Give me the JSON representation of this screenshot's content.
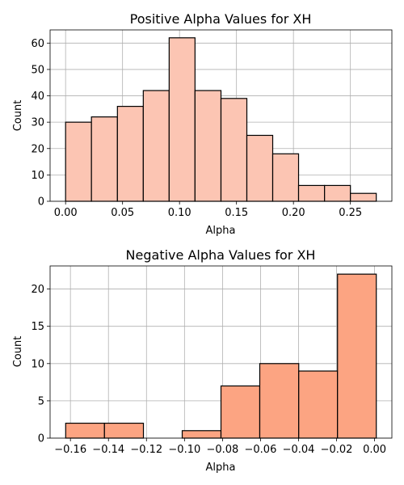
{
  "chart_data": [
    {
      "type": "bar",
      "title": "Positive Alpha Values for XH",
      "xlabel": "Alpha",
      "ylabel": "Count",
      "color": "#fcc5b3",
      "bin_edges": [
        0.0,
        0.0227,
        0.0455,
        0.0682,
        0.0909,
        0.1136,
        0.1364,
        0.1591,
        0.1818,
        0.2045,
        0.2273,
        0.25,
        0.2727
      ],
      "values": [
        30,
        32,
        36,
        42,
        62,
        42,
        39,
        25,
        18,
        6,
        6,
        3
      ],
      "xlim": [
        -0.0136,
        0.2864
      ],
      "ylim": [
        0,
        65
      ],
      "xticks": [
        0.0,
        0.05,
        0.1,
        0.15,
        0.2,
        0.25
      ],
      "xtick_labels": [
        "0.00",
        "0.05",
        "0.10",
        "0.15",
        "0.20",
        "0.25"
      ],
      "yticks": [
        0,
        10,
        20,
        30,
        40,
        50,
        60
      ],
      "ytick_labels": [
        "0",
        "10",
        "20",
        "30",
        "40",
        "50",
        "60"
      ],
      "grid": true
    },
    {
      "type": "bar",
      "title": "Negative Alpha Values for XH",
      "xlabel": "Alpha",
      "ylabel": "Count",
      "color": "#fca482",
      "bin_edges": [
        -0.1625,
        -0.1421,
        -0.1216,
        -0.1012,
        -0.0808,
        -0.0604,
        -0.0399,
        -0.0195,
        0.0009
      ],
      "values": [
        2,
        2,
        0,
        1,
        7,
        10,
        9,
        22
      ],
      "xlim": [
        -0.1707,
        0.0091
      ],
      "ylim": [
        0,
        23.1
      ],
      "xticks": [
        -0.16,
        -0.14,
        -0.12,
        -0.1,
        -0.08,
        -0.06,
        -0.04,
        -0.02,
        0.0
      ],
      "xtick_labels": [
        "−0.16",
        "−0.14",
        "−0.12",
        "−0.10",
        "−0.08",
        "−0.06",
        "−0.04",
        "−0.02",
        "0.00"
      ],
      "yticks": [
        0,
        5,
        10,
        15,
        20
      ],
      "ytick_labels": [
        "0",
        "5",
        "10",
        "15",
        "20"
      ],
      "grid": true
    }
  ]
}
